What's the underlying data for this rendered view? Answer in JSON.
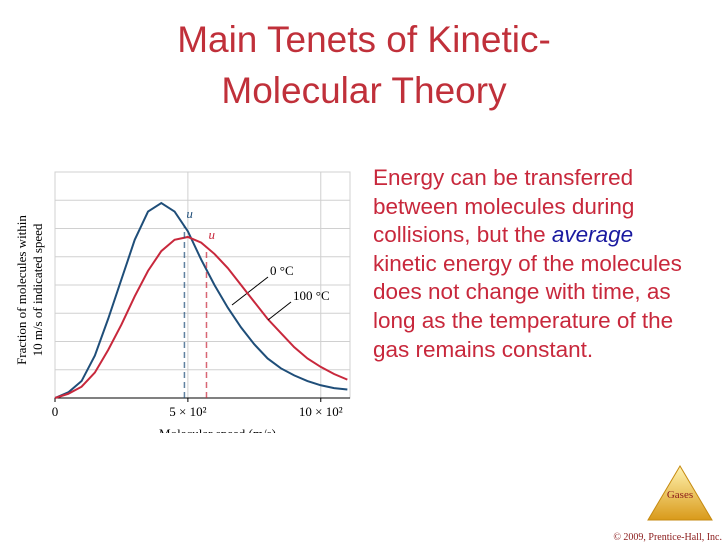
{
  "title": [
    "Main Tenets of Kinetic-",
    "Molecular Theory"
  ],
  "body": [
    "Energy can be transferred between molecules during collisions, but the ",
    "average",
    " kinetic energy of the molecules does not change with time, as long as the temperature of the gas remains constant."
  ],
  "chart_data": {
    "type": "line",
    "xlabel": "Molecular speed (m/s)",
    "ylabel": [
      "Fraction of molecules within",
      "10 m/s of indicated speed"
    ],
    "x": [
      0,
      50,
      100,
      150,
      200,
      250,
      300,
      350,
      400,
      450,
      500,
      550,
      600,
      650,
      700,
      750,
      800,
      850,
      900,
      950,
      1000,
      1050,
      1100
    ],
    "series": [
      {
        "name": "0 °C",
        "color": "#1f4e79",
        "values": [
          0,
          0.2,
          0.6,
          1.5,
          2.8,
          4.2,
          5.6,
          6.6,
          6.9,
          6.6,
          5.9,
          4.9,
          4.0,
          3.2,
          2.5,
          1.9,
          1.4,
          1.05,
          0.8,
          0.6,
          0.45,
          0.35,
          0.3
        ]
      },
      {
        "name": "100 °C",
        "color": "#c8283c",
        "values": [
          0,
          0.15,
          0.4,
          0.9,
          1.7,
          2.6,
          3.6,
          4.5,
          5.2,
          5.6,
          5.7,
          5.5,
          5.1,
          4.6,
          4.0,
          3.4,
          2.8,
          2.3,
          1.8,
          1.4,
          1.1,
          0.85,
          0.65
        ]
      }
    ],
    "annotations": [
      {
        "label": "u",
        "x": 487,
        "series": 0
      },
      {
        "label": "u",
        "x": 570,
        "series": 1
      }
    ],
    "xlim": [
      0,
      1110
    ],
    "ylim": [
      0,
      8
    ],
    "xticks": [
      0,
      {
        "value": 500,
        "label": "5 × 10²"
      },
      {
        "value": 1000,
        "label": "10 × 10²"
      }
    ],
    "grid": true
  },
  "footer": {
    "badge": "Gases",
    "copyright": "© 2009, Prentice-Hall, Inc."
  }
}
